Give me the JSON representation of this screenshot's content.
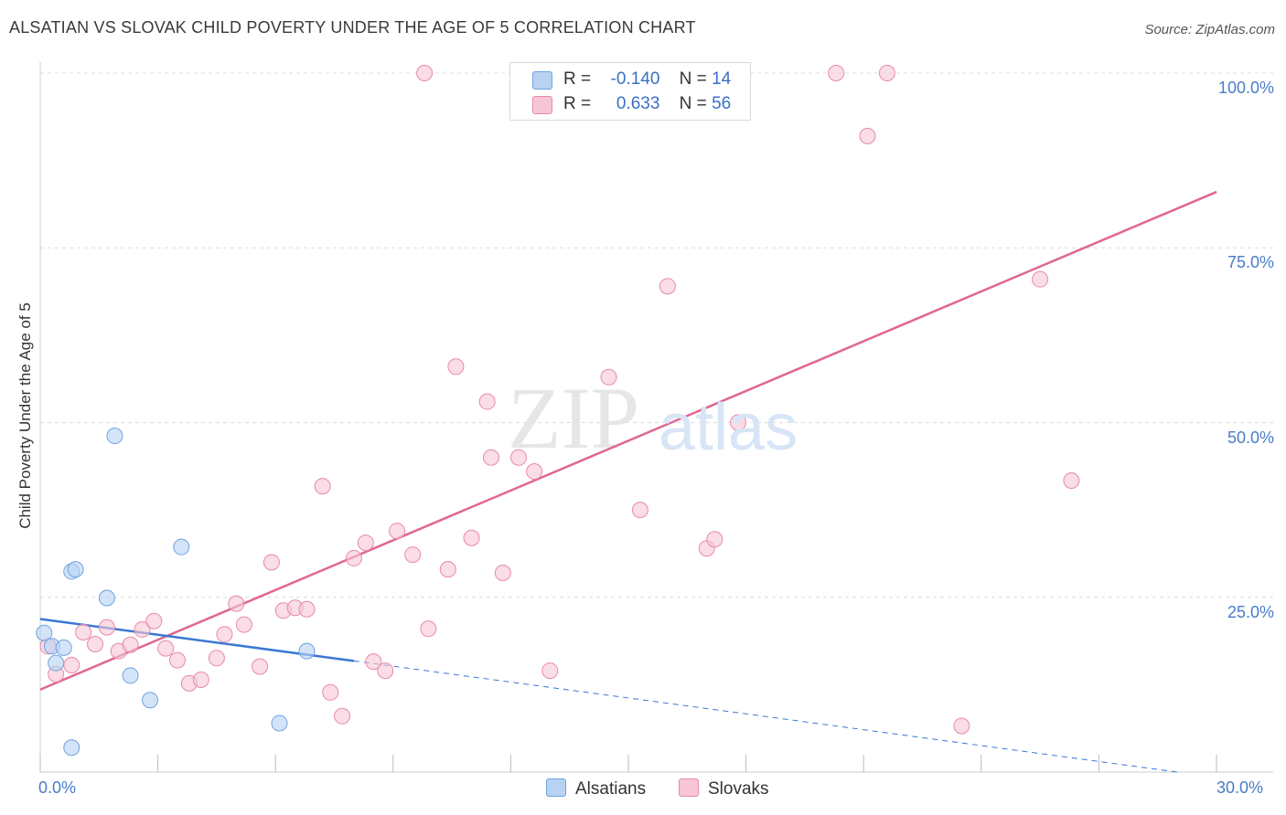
{
  "title": "ALSATIAN VS SLOVAK CHILD POVERTY UNDER THE AGE OF 5 CORRELATION CHART",
  "source": "Source: ZipAtlas.com",
  "watermark": "ZIPatlas",
  "colors": {
    "alsatian": "#6fa3e0",
    "alsatian_fill": "#b8d2f4",
    "alsatian_line": "#3a78d4",
    "slovak": "#e88aa8",
    "slovak_fill": "#f7c6d6",
    "slovak_line": "#e06690",
    "tick_text": "#4a7cc9"
  },
  "legend": {
    "rows": [
      {
        "r_label": "R =",
        "r_value": "-0.140",
        "n_label": "N =",
        "n_value": "14"
      },
      {
        "r_label": "R =",
        "r_value": "0.633",
        "n_label": "N =",
        "n_value": "56"
      }
    ]
  },
  "bottom_legend": [
    "Alsatians",
    "Slovaks"
  ],
  "chart_data": {
    "type": "scatter",
    "title": "ALSATIAN VS SLOVAK CHILD POVERTY UNDER THE AGE OF 5 CORRELATION CHART",
    "xlabel": "",
    "ylabel": "Child Poverty Under the Age of 5",
    "xlim": [
      0,
      30
    ],
    "ylim": [
      0,
      100
    ],
    "x_tick_labels": [
      "0.0%",
      "30.0%"
    ],
    "y_tick_labels": [
      "25.0%",
      "50.0%",
      "75.0%",
      "100.0%"
    ],
    "y_ticks": [
      25,
      50,
      75,
      100
    ],
    "grid": true,
    "legend_position": "top-center",
    "series": [
      {
        "name": "Alsatians",
        "r": -0.14,
        "n": 14,
        "points": [
          [
            0.1,
            19.9
          ],
          [
            0.3,
            18.0
          ],
          [
            0.6,
            17.8
          ],
          [
            0.4,
            15.6
          ],
          [
            0.8,
            28.7
          ],
          [
            0.9,
            29.0
          ],
          [
            1.7,
            24.9
          ],
          [
            1.9,
            48.1
          ],
          [
            2.3,
            13.8
          ],
          [
            2.8,
            10.3
          ],
          [
            3.6,
            32.2
          ],
          [
            6.1,
            7.0
          ],
          [
            6.8,
            17.3
          ],
          [
            0.8,
            3.5
          ]
        ],
        "trend": {
          "x": [
            0,
            8.0
          ],
          "y": [
            21.9,
            15.9
          ]
        },
        "trend_extension": {
          "x": [
            8.0,
            29.0
          ],
          "y": [
            15.9,
            0.0
          ]
        }
      },
      {
        "name": "Slovaks",
        "r": 0.633,
        "n": 56,
        "points": [
          [
            0.2,
            18.0
          ],
          [
            0.4,
            14.0
          ],
          [
            0.8,
            15.3
          ],
          [
            1.1,
            20.0
          ],
          [
            1.4,
            18.3
          ],
          [
            1.7,
            20.7
          ],
          [
            2.0,
            17.3
          ],
          [
            2.3,
            18.2
          ],
          [
            2.6,
            20.4
          ],
          [
            2.9,
            21.6
          ],
          [
            3.2,
            17.7
          ],
          [
            3.5,
            16.0
          ],
          [
            3.8,
            12.7
          ],
          [
            4.1,
            13.2
          ],
          [
            4.5,
            16.3
          ],
          [
            4.7,
            19.7
          ],
          [
            5.0,
            24.1
          ],
          [
            5.2,
            21.1
          ],
          [
            5.6,
            15.1
          ],
          [
            5.9,
            30.0
          ],
          [
            6.2,
            23.1
          ],
          [
            6.5,
            23.5
          ],
          [
            6.8,
            23.3
          ],
          [
            7.2,
            40.9
          ],
          [
            7.4,
            11.4
          ],
          [
            7.7,
            8.0
          ],
          [
            8.0,
            30.6
          ],
          [
            8.3,
            32.8
          ],
          [
            8.5,
            15.8
          ],
          [
            8.8,
            14.5
          ],
          [
            9.1,
            34.5
          ],
          [
            9.5,
            31.1
          ],
          [
            9.8,
            100.0
          ],
          [
            9.9,
            20.5
          ],
          [
            10.4,
            29.0
          ],
          [
            10.6,
            58.0
          ],
          [
            11.0,
            33.5
          ],
          [
            11.4,
            53.0
          ],
          [
            11.5,
            45.0
          ],
          [
            11.8,
            28.5
          ],
          [
            12.2,
            45.0
          ],
          [
            12.6,
            43.0
          ],
          [
            13.0,
            14.5
          ],
          [
            14.5,
            56.5
          ],
          [
            15.3,
            37.5
          ],
          [
            16.0,
            69.5
          ],
          [
            16.3,
            100.0
          ],
          [
            17.0,
            32.0
          ],
          [
            17.2,
            33.3
          ],
          [
            17.8,
            50.0
          ],
          [
            20.3,
            100.0
          ],
          [
            21.1,
            91.0
          ],
          [
            21.6,
            100.0
          ],
          [
            23.5,
            6.6
          ],
          [
            25.5,
            70.5
          ],
          [
            26.3,
            41.7
          ]
        ],
        "trend": {
          "x": [
            0,
            30.0
          ],
          "y": [
            11.8,
            83.0
          ]
        }
      }
    ]
  }
}
